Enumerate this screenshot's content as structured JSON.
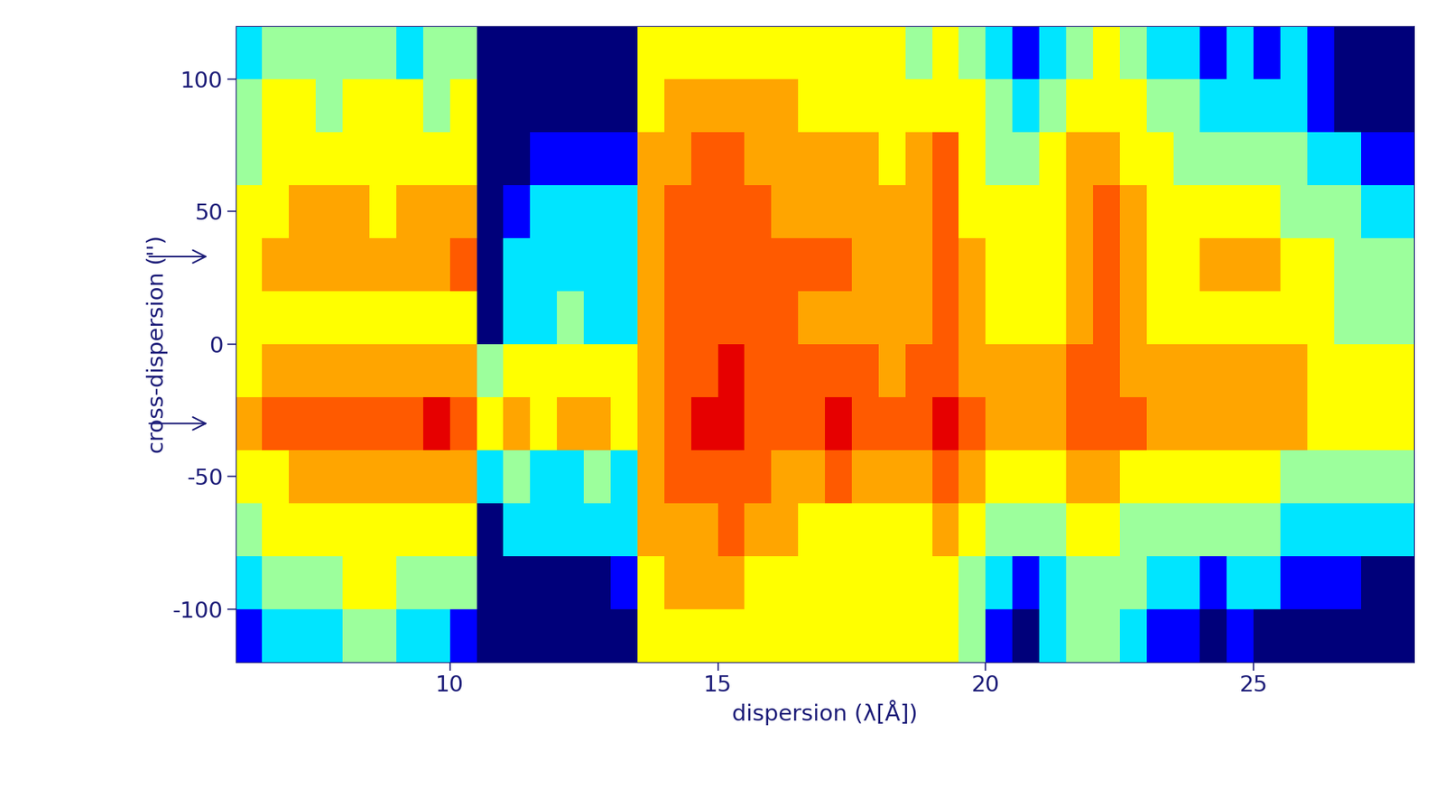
{
  "chart_data": {
    "type": "heatmap",
    "xlabel": "dispersion (λ[Å])",
    "ylabel": "cross-dispersion ('')",
    "xlim": [
      6,
      28
    ],
    "ylim": [
      -120,
      120
    ],
    "xticks": [
      10,
      15,
      20,
      25
    ],
    "yticks": [
      -100,
      -50,
      0,
      50,
      100
    ],
    "arrows_y": [
      33,
      -30
    ],
    "clim": [
      0,
      7
    ],
    "x_edges": [
      6.0,
      6.5,
      7.0,
      7.5,
      8.0,
      8.5,
      9.0,
      9.5,
      10.0,
      10.5,
      11.0,
      11.5,
      12.0,
      12.5,
      13.0,
      13.5,
      14.0,
      14.5,
      15.0,
      15.5,
      16.0,
      16.5,
      17.0,
      17.5,
      18.0,
      18.5,
      19.0,
      19.5,
      20.0,
      20.5,
      21.0,
      21.5,
      22.0,
      22.5,
      23.0,
      23.5,
      24.0,
      24.5,
      25.0,
      25.5,
      26.0,
      26.5,
      27.0,
      27.5,
      28.0
    ],
    "y_edges": [
      -120,
      -100,
      -80,
      -60,
      -40,
      -20,
      0,
      20,
      40,
      60,
      80,
      100,
      120
    ],
    "cells": [
      [
        1,
        2,
        2,
        2,
        3,
        3,
        2,
        2,
        1,
        0,
        0,
        0,
        0,
        0,
        0,
        4,
        4,
        4,
        4,
        4,
        4,
        4,
        4,
        4,
        4,
        4,
        4,
        3,
        1,
        0,
        2,
        3,
        3,
        2,
        1,
        1,
        0,
        1,
        0,
        0,
        0,
        0,
        0,
        0
      ],
      [
        2,
        3,
        3,
        3,
        4,
        4,
        3,
        3,
        3,
        0,
        0,
        0,
        0,
        0,
        1,
        4,
        5,
        5,
        5,
        4,
        4,
        4,
        4,
        4,
        4,
        4,
        4,
        3,
        2,
        1,
        2,
        3,
        3,
        3,
        2,
        2,
        1,
        2,
        2,
        1,
        1,
        1,
        0,
        0
      ],
      [
        3,
        4,
        4,
        4,
        4,
        4,
        4,
        4,
        4,
        0,
        2,
        2,
        2,
        2,
        2,
        5,
        5,
        5,
        6,
        5,
        5,
        4,
        4,
        4,
        4,
        4,
        5,
        4,
        3,
        3,
        3,
        4,
        4,
        3,
        3,
        3,
        3,
        3,
        3,
        2,
        2,
        2,
        2,
        2
      ],
      [
        4,
        4,
        5,
        5,
        5,
        5,
        5,
        5,
        5,
        2,
        3,
        2,
        2,
        3,
        2,
        5,
        6,
        6,
        6,
        6,
        5,
        5,
        6,
        5,
        5,
        5,
        6,
        5,
        4,
        4,
        4,
        5,
        5,
        4,
        4,
        4,
        4,
        4,
        4,
        3,
        3,
        3,
        3,
        3
      ],
      [
        5,
        6,
        6,
        6,
        6,
        6,
        6,
        7,
        6,
        4,
        5,
        4,
        5,
        5,
        4,
        5,
        6,
        7,
        7,
        6,
        6,
        6,
        7,
        6,
        6,
        6,
        7,
        6,
        5,
        5,
        5,
        6,
        6,
        6,
        5,
        5,
        5,
        5,
        5,
        5,
        4,
        4,
        4,
        4
      ],
      [
        4,
        5,
        5,
        5,
        5,
        5,
        5,
        5,
        5,
        3,
        4,
        4,
        4,
        4,
        4,
        5,
        6,
        6,
        7,
        6,
        6,
        6,
        6,
        6,
        5,
        6,
        6,
        5,
        5,
        5,
        5,
        6,
        6,
        5,
        5,
        5,
        5,
        5,
        5,
        5,
        4,
        4,
        4,
        4
      ],
      [
        4,
        4,
        4,
        4,
        4,
        4,
        4,
        4,
        4,
        0,
        2,
        2,
        3,
        2,
        2,
        5,
        6,
        6,
        6,
        6,
        6,
        5,
        5,
        5,
        5,
        5,
        6,
        5,
        4,
        4,
        4,
        5,
        6,
        5,
        4,
        4,
        4,
        4,
        4,
        4,
        4,
        3,
        3,
        3
      ],
      [
        4,
        5,
        5,
        5,
        5,
        5,
        5,
        5,
        6,
        0,
        2,
        2,
        2,
        2,
        2,
        5,
        6,
        6,
        6,
        6,
        6,
        6,
        6,
        5,
        5,
        5,
        6,
        5,
        4,
        4,
        4,
        5,
        6,
        5,
        4,
        4,
        5,
        5,
        5,
        4,
        4,
        3,
        3,
        3
      ],
      [
        4,
        4,
        5,
        5,
        5,
        4,
        5,
        5,
        5,
        0,
        1,
        2,
        2,
        2,
        2,
        5,
        6,
        6,
        6,
        6,
        5,
        5,
        5,
        5,
        5,
        5,
        6,
        4,
        4,
        4,
        4,
        5,
        6,
        5,
        4,
        4,
        4,
        4,
        4,
        3,
        3,
        3,
        2,
        2
      ],
      [
        3,
        4,
        4,
        4,
        4,
        4,
        4,
        4,
        4,
        0,
        0,
        1,
        1,
        1,
        1,
        5,
        5,
        6,
        6,
        5,
        5,
        5,
        5,
        5,
        4,
        5,
        6,
        4,
        3,
        3,
        4,
        5,
        5,
        4,
        4,
        3,
        3,
        3,
        3,
        3,
        2,
        2,
        1,
        1
      ],
      [
        3,
        4,
        4,
        3,
        4,
        4,
        4,
        3,
        4,
        0,
        0,
        0,
        0,
        0,
        0,
        4,
        5,
        5,
        5,
        5,
        5,
        4,
        4,
        4,
        4,
        4,
        4,
        4,
        3,
        2,
        3,
        4,
        4,
        4,
        3,
        3,
        2,
        2,
        2,
        2,
        1,
        0,
        0,
        0
      ],
      [
        2,
        3,
        3,
        3,
        3,
        3,
        2,
        3,
        3,
        0,
        0,
        0,
        0,
        0,
        0,
        4,
        4,
        4,
        4,
        4,
        4,
        4,
        4,
        4,
        4,
        3,
        4,
        3,
        2,
        1,
        2,
        3,
        4,
        3,
        2,
        2,
        1,
        2,
        1,
        2,
        1,
        0,
        0,
        0
      ]
    ]
  }
}
